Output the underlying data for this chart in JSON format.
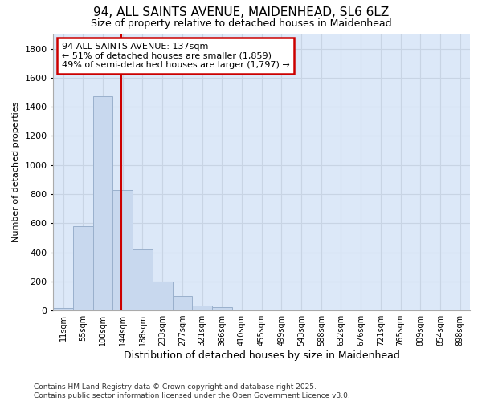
{
  "title": "94, ALL SAINTS AVENUE, MAIDENHEAD, SL6 6LZ",
  "subtitle": "Size of property relative to detached houses in Maidenhead",
  "xlabel": "Distribution of detached houses by size in Maidenhead",
  "ylabel": "Number of detached properties",
  "footer1": "Contains HM Land Registry data © Crown copyright and database right 2025.",
  "footer2": "Contains public sector information licensed under the Open Government Licence v3.0.",
  "categories": [
    "11sqm",
    "55sqm",
    "100sqm",
    "144sqm",
    "188sqm",
    "233sqm",
    "277sqm",
    "321sqm",
    "366sqm",
    "410sqm",
    "455sqm",
    "499sqm",
    "543sqm",
    "588sqm",
    "632sqm",
    "676sqm",
    "721sqm",
    "765sqm",
    "809sqm",
    "854sqm",
    "898sqm"
  ],
  "values": [
    15,
    580,
    1470,
    830,
    420,
    200,
    100,
    35,
    20,
    0,
    0,
    0,
    0,
    0,
    5,
    0,
    0,
    0,
    0,
    0,
    0
  ],
  "bar_color": "#c8d8ee",
  "bar_edge_color": "#9ab0cc",
  "ylim": [
    0,
    1900
  ],
  "yticks": [
    0,
    200,
    400,
    600,
    800,
    1000,
    1200,
    1400,
    1600,
    1800
  ],
  "grid_color": "#c8d4e4",
  "bg_color": "#ffffff",
  "plot_bg_color": "#dce8f8",
  "property_line_x": 2.92,
  "annotation_text": "94 ALL SAINTS AVENUE: 137sqm\n← 51% of detached houses are smaller (1,859)\n49% of semi-detached houses are larger (1,797) →",
  "annotation_box_color": "#ffffff",
  "annotation_box_edge": "#cc0000",
  "vline_color": "#cc0000"
}
